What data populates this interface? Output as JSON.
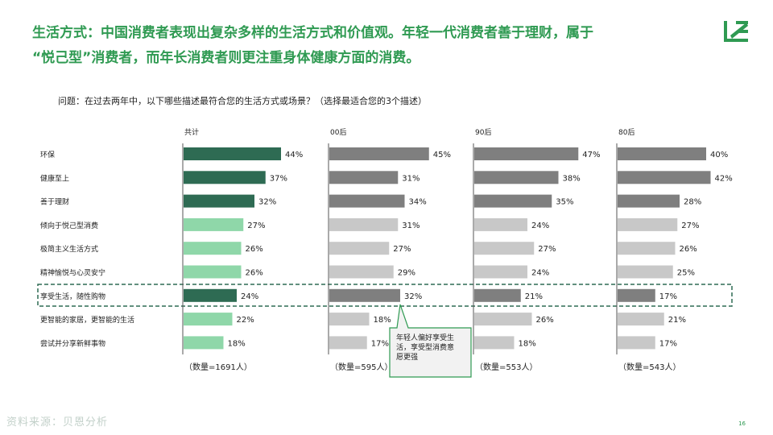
{
  "header": {
    "title_line1": "生活方式：中国消费者表现出复杂多样的生活方式和价值观。年轻一代消费者善于理财，属于",
    "title_line2": "“悦己型”消费者，而年长消费者则更注重身体健康方面的消费。"
  },
  "question": "问题：在过去两年中，以下哪些描述最符合您的生活方式或场景？（选择最适合您的3个描述）",
  "callout": {
    "line1": "年轻人偏好享受生",
    "line2": "活，享受型消费意",
    "line3": "愿更强"
  },
  "footer": {
    "page_number": "16",
    "watermark": "资料来源：贝恩分析"
  },
  "colors": {
    "title_green": "#2f9a52",
    "dark_green": "#2e6b53",
    "light_green": "#8fd7a9",
    "dark_gray": "#7f7f7f",
    "light_gray": "#c8c8c8",
    "highlight_border": "#2e6b53",
    "callout_border": "#2f9a52",
    "callout_fill": "#f2f2f2"
  },
  "chart_data": [
    {
      "type": "bar",
      "orientation": "horizontal",
      "title": "共计",
      "categories": [
        "环保",
        "健康至上",
        "善于理财",
        "倾向于悦己型消费",
        "极简主义生活方式",
        "精神愉悦与心灵安宁",
        "享受生活，随性购物",
        "更智能的家居，更智能的生活",
        "尝试并分享新鲜事物"
      ],
      "values": [
        44,
        37,
        32,
        27,
        26,
        26,
        24,
        22,
        18
      ],
      "value_labels": [
        "44%",
        "37%",
        "32%",
        "27%",
        "26%",
        "26%",
        "24%",
        "22%",
        "18%"
      ],
      "sample": "（数量=1691人）",
      "dark_rows": [
        0,
        1,
        2,
        6
      ]
    },
    {
      "type": "bar",
      "orientation": "horizontal",
      "title": "00后",
      "categories": [
        "环保",
        "健康至上",
        "善于理财",
        "倾向于悦己型消费",
        "极简主义生活方式",
        "精神愉悦与心灵安宁",
        "享受生活，随性购物",
        "更智能的家居，更智能的生活",
        "尝试并分享新鲜事物"
      ],
      "values": [
        45,
        31,
        34,
        31,
        27,
        29,
        32,
        18,
        17
      ],
      "value_labels": [
        "45%",
        "31%",
        "34%",
        "31%",
        "27%",
        "29%",
        "32%",
        "18%",
        "17%"
      ],
      "sample": "（数量=595人）",
      "dark_rows": [
        0,
        1,
        2,
        6
      ]
    },
    {
      "type": "bar",
      "orientation": "horizontal",
      "title": "90后",
      "categories": [
        "环保",
        "健康至上",
        "善于理财",
        "倾向于悦己型消费",
        "极简主义生活方式",
        "精神愉悦与心灵安宁",
        "享受生活，随性购物",
        "更智能的家居，更智能的生活",
        "尝试并分享新鲜事物"
      ],
      "values": [
        47,
        38,
        35,
        24,
        27,
        24,
        21,
        26,
        18
      ],
      "value_labels": [
        "47%",
        "38%",
        "35%",
        "24%",
        "27%",
        "24%",
        "21%",
        "26%",
        "18%"
      ],
      "sample": "（数量=553人）",
      "dark_rows": [
        0,
        1,
        2,
        6
      ]
    },
    {
      "type": "bar",
      "orientation": "horizontal",
      "title": "80后",
      "categories": [
        "环保",
        "健康至上",
        "善于理财",
        "倾向于悦己型消费",
        "极简主义生活方式",
        "精神愉悦与心灵安宁",
        "享受生活，随性购物",
        "更智能的家居，更智能的生活",
        "尝试并分享新鲜事物"
      ],
      "values": [
        40,
        42,
        28,
        27,
        26,
        25,
        17,
        21,
        17
      ],
      "value_labels": [
        "40%",
        "42%",
        "28%",
        "27%",
        "26%",
        "25%",
        "17%",
        "21%",
        "17%"
      ],
      "sample": "（数量=543人）",
      "dark_rows": [
        0,
        1,
        2,
        6
      ]
    }
  ]
}
